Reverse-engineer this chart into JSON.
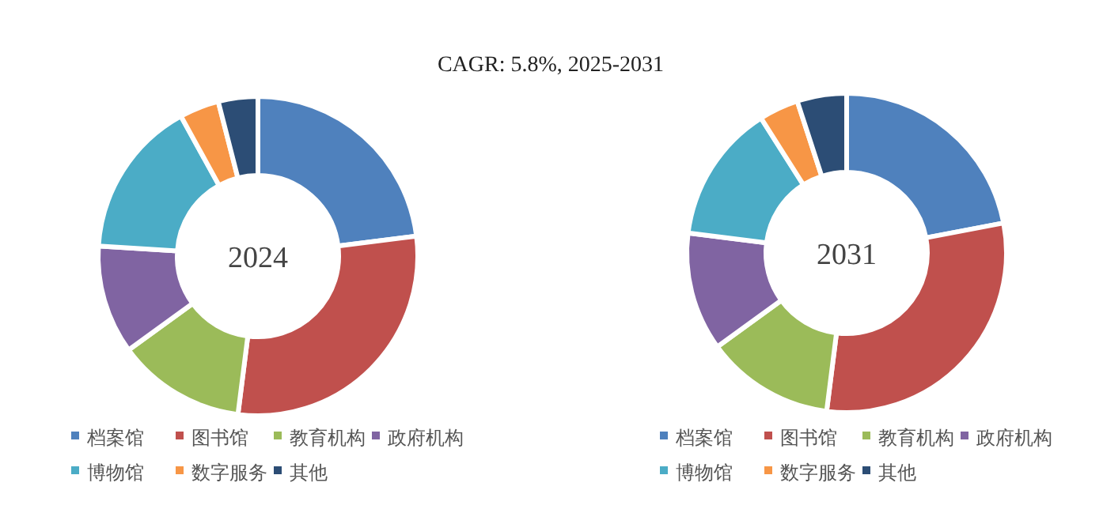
{
  "chart_data": [
    {
      "type": "donut",
      "title": "CAGR:  5.8%, 2025-2031",
      "annotations": [
        "2024"
      ],
      "categories": [
        "档案馆",
        "图书馆",
        "教育机构",
        "政府机构",
        "博物馆",
        "数字服务",
        "其他"
      ],
      "values": [
        23,
        29,
        13,
        11,
        16,
        4,
        4
      ],
      "colors": [
        "#4f81bd",
        "#c0504d",
        "#9bbb59",
        "#8064a2",
        "#4bacc6",
        "#f79646",
        "#2c4d75"
      ],
      "legend": "bottom"
    },
    {
      "type": "donut",
      "annotations": [
        "2031"
      ],
      "categories": [
        "档案馆",
        "图书馆",
        "教育机构",
        "政府机构",
        "博物馆",
        "数字服务",
        "其他"
      ],
      "values": [
        22,
        30,
        13,
        12,
        14,
        4,
        5
      ],
      "colors": [
        "#4f81bd",
        "#c0504d",
        "#9bbb59",
        "#8064a2",
        "#4bacc6",
        "#f79646",
        "#2c4d75"
      ],
      "legend": "bottom"
    }
  ]
}
